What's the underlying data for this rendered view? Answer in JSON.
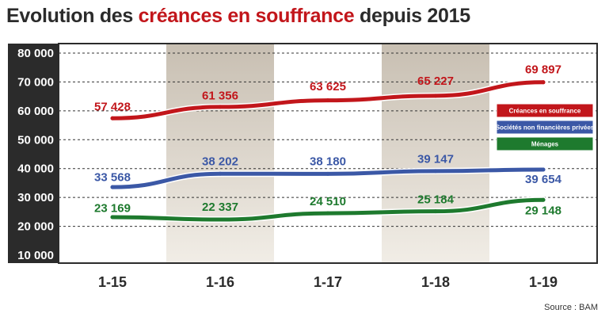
{
  "chart_data": {
    "type": "line",
    "title_prefix": "Evolution des ",
    "title_highlight": "créances en souffrance",
    "title_suffix": " depuis 2015",
    "categories": [
      "1-15",
      "1-16",
      "1-17",
      "1-18",
      "1-19"
    ],
    "ylim": [
      10000,
      80000
    ],
    "yticks": [
      "10 000",
      "20 000",
      "30 000",
      "40 000",
      "50 000",
      "60 000",
      "70 000",
      "80 000"
    ],
    "grid": true,
    "legend_position": "right",
    "source": "Source : BAM",
    "series": [
      {
        "name": "Créances en souffrance",
        "color": "#c2161b",
        "values": [
          57428,
          61356,
          63625,
          65227,
          69897
        ],
        "labels": [
          "57 428",
          "61 356",
          "63 625",
          "65 227",
          "69 897"
        ],
        "label_values": [
          61500,
          65300,
          68500,
          70400,
          74400
        ]
      },
      {
        "name": "Sociétés non financières privées",
        "color": "#3b58a6",
        "values": [
          33568,
          38202,
          38180,
          39147,
          39654
        ],
        "labels": [
          "33 568",
          "38 202",
          "38 180",
          "39 147",
          "39 654"
        ],
        "label_values": [
          37000,
          42500,
          42500,
          43300,
          36300
        ]
      },
      {
        "name": "Ménages",
        "color": "#1e7a2e",
        "values": [
          23169,
          22337,
          24510,
          25184,
          29148
        ],
        "labels": [
          "23 169",
          "22 337",
          "24 510",
          "25 184",
          "29 148"
        ],
        "label_values": [
          26400,
          26700,
          28700,
          29400,
          25500
        ]
      }
    ]
  }
}
